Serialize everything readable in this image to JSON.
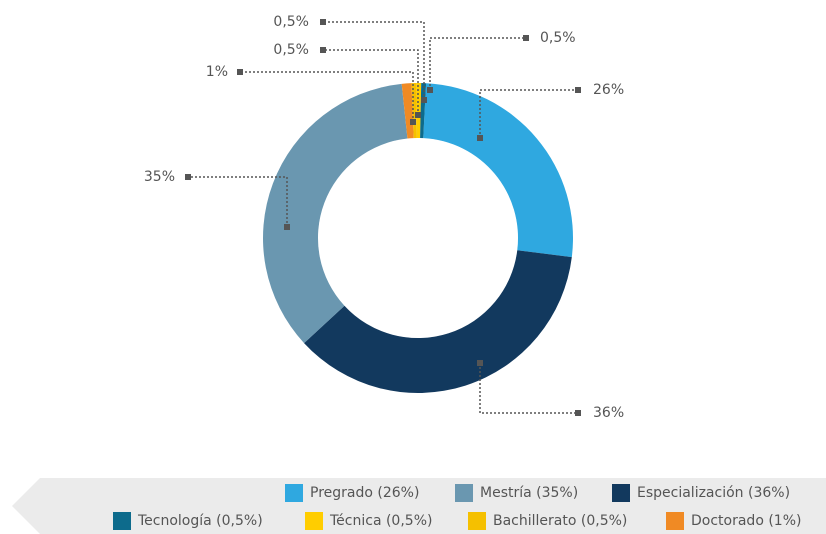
{
  "chart_data": {
    "type": "donut",
    "categories": [
      "Pregrado (26%)",
      "Especialización (36%)",
      "Mestría (35%)",
      "Doctorado (1%)",
      "Bachillerato (0,5%)",
      "Técnica (0,5%)",
      "Tecnología (0,5%)"
    ],
    "values": [
      26,
      36,
      35,
      1,
      0.5,
      0.5,
      0.5
    ],
    "value_labels": [
      "26%",
      "36%",
      "35%",
      "1%",
      "0,5%",
      "0,5%",
      "0,5%"
    ],
    "colors": [
      "#2fa8e0",
      "#12395e",
      "#6a97b0",
      "#f08a24",
      "#f5c000",
      "#ffcd00",
      "#0d6b8c"
    ],
    "legend": "bottom-right"
  }
}
